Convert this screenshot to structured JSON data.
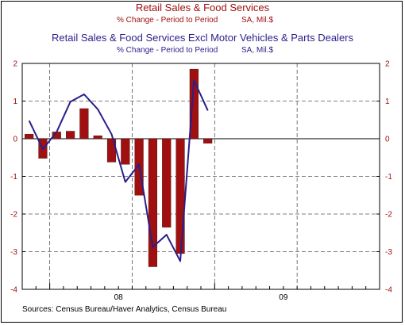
{
  "chart_data": {
    "type": "bar+line",
    "titles": [
      {
        "text": "Retail Sales & Food Services",
        "color": "#a01010"
      },
      {
        "text": "% Change - Period to Period",
        "color": "#a01010"
      },
      {
        "text": "SA, Mil.$",
        "color": "#a01010"
      },
      {
        "text": "Retail Sales & Food Services Excl Motor Vehicles & Parts Dealers",
        "color": "#2a1f8a"
      },
      {
        "text": "% Change - Period to Period",
        "color": "#2a1f8a"
      },
      {
        "text": "SA, Mil.$",
        "color": "#2a1f8a"
      }
    ],
    "ylim": [
      -4,
      2
    ],
    "yticks": [
      -4,
      -3,
      -2,
      -1,
      0,
      1,
      2
    ],
    "ytick_labels": [
      "-4",
      "-3",
      "-2",
      "-1",
      "0",
      "1",
      "2"
    ],
    "x_month_range": [
      "2007-11",
      "2009-12"
    ],
    "xtick_labels": [
      {
        "label": "08",
        "month": "2008-06"
      },
      {
        "label": "09",
        "month": "2009-06"
      }
    ],
    "series": [
      {
        "type": "bar",
        "color": "#a01010",
        "months": [
          "2007-11",
          "2007-12",
          "2008-01",
          "2008-02",
          "2008-03",
          "2008-04",
          "2008-05",
          "2008-06",
          "2008-07",
          "2008-08",
          "2008-09",
          "2008-10",
          "2008-11",
          "2008-12",
          "2009-01",
          "2009-02"
        ],
        "values": [
          0.12,
          -0.52,
          0.18,
          0.2,
          0.8,
          0.08,
          -0.62,
          -0.68,
          -1.5,
          -3.4,
          -2.35,
          -3.05,
          1.85,
          -0.12,
          null,
          null
        ]
      },
      {
        "type": "line",
        "color": "#2a1f8a",
        "months": [
          "2007-11",
          "2007-12",
          "2008-01",
          "2008-02",
          "2008-03",
          "2008-04",
          "2008-05",
          "2008-06",
          "2008-07",
          "2008-08",
          "2008-09",
          "2008-10",
          "2008-11",
          "2008-12"
        ],
        "values": [
          0.48,
          -0.28,
          0.18,
          0.98,
          1.18,
          0.78,
          0.12,
          -1.15,
          -0.68,
          -2.88,
          -2.55,
          -3.25,
          1.55,
          0.75
        ]
      }
    ],
    "source": "Sources:  Census Bureau/Haver Analytics, Census Bureau"
  }
}
